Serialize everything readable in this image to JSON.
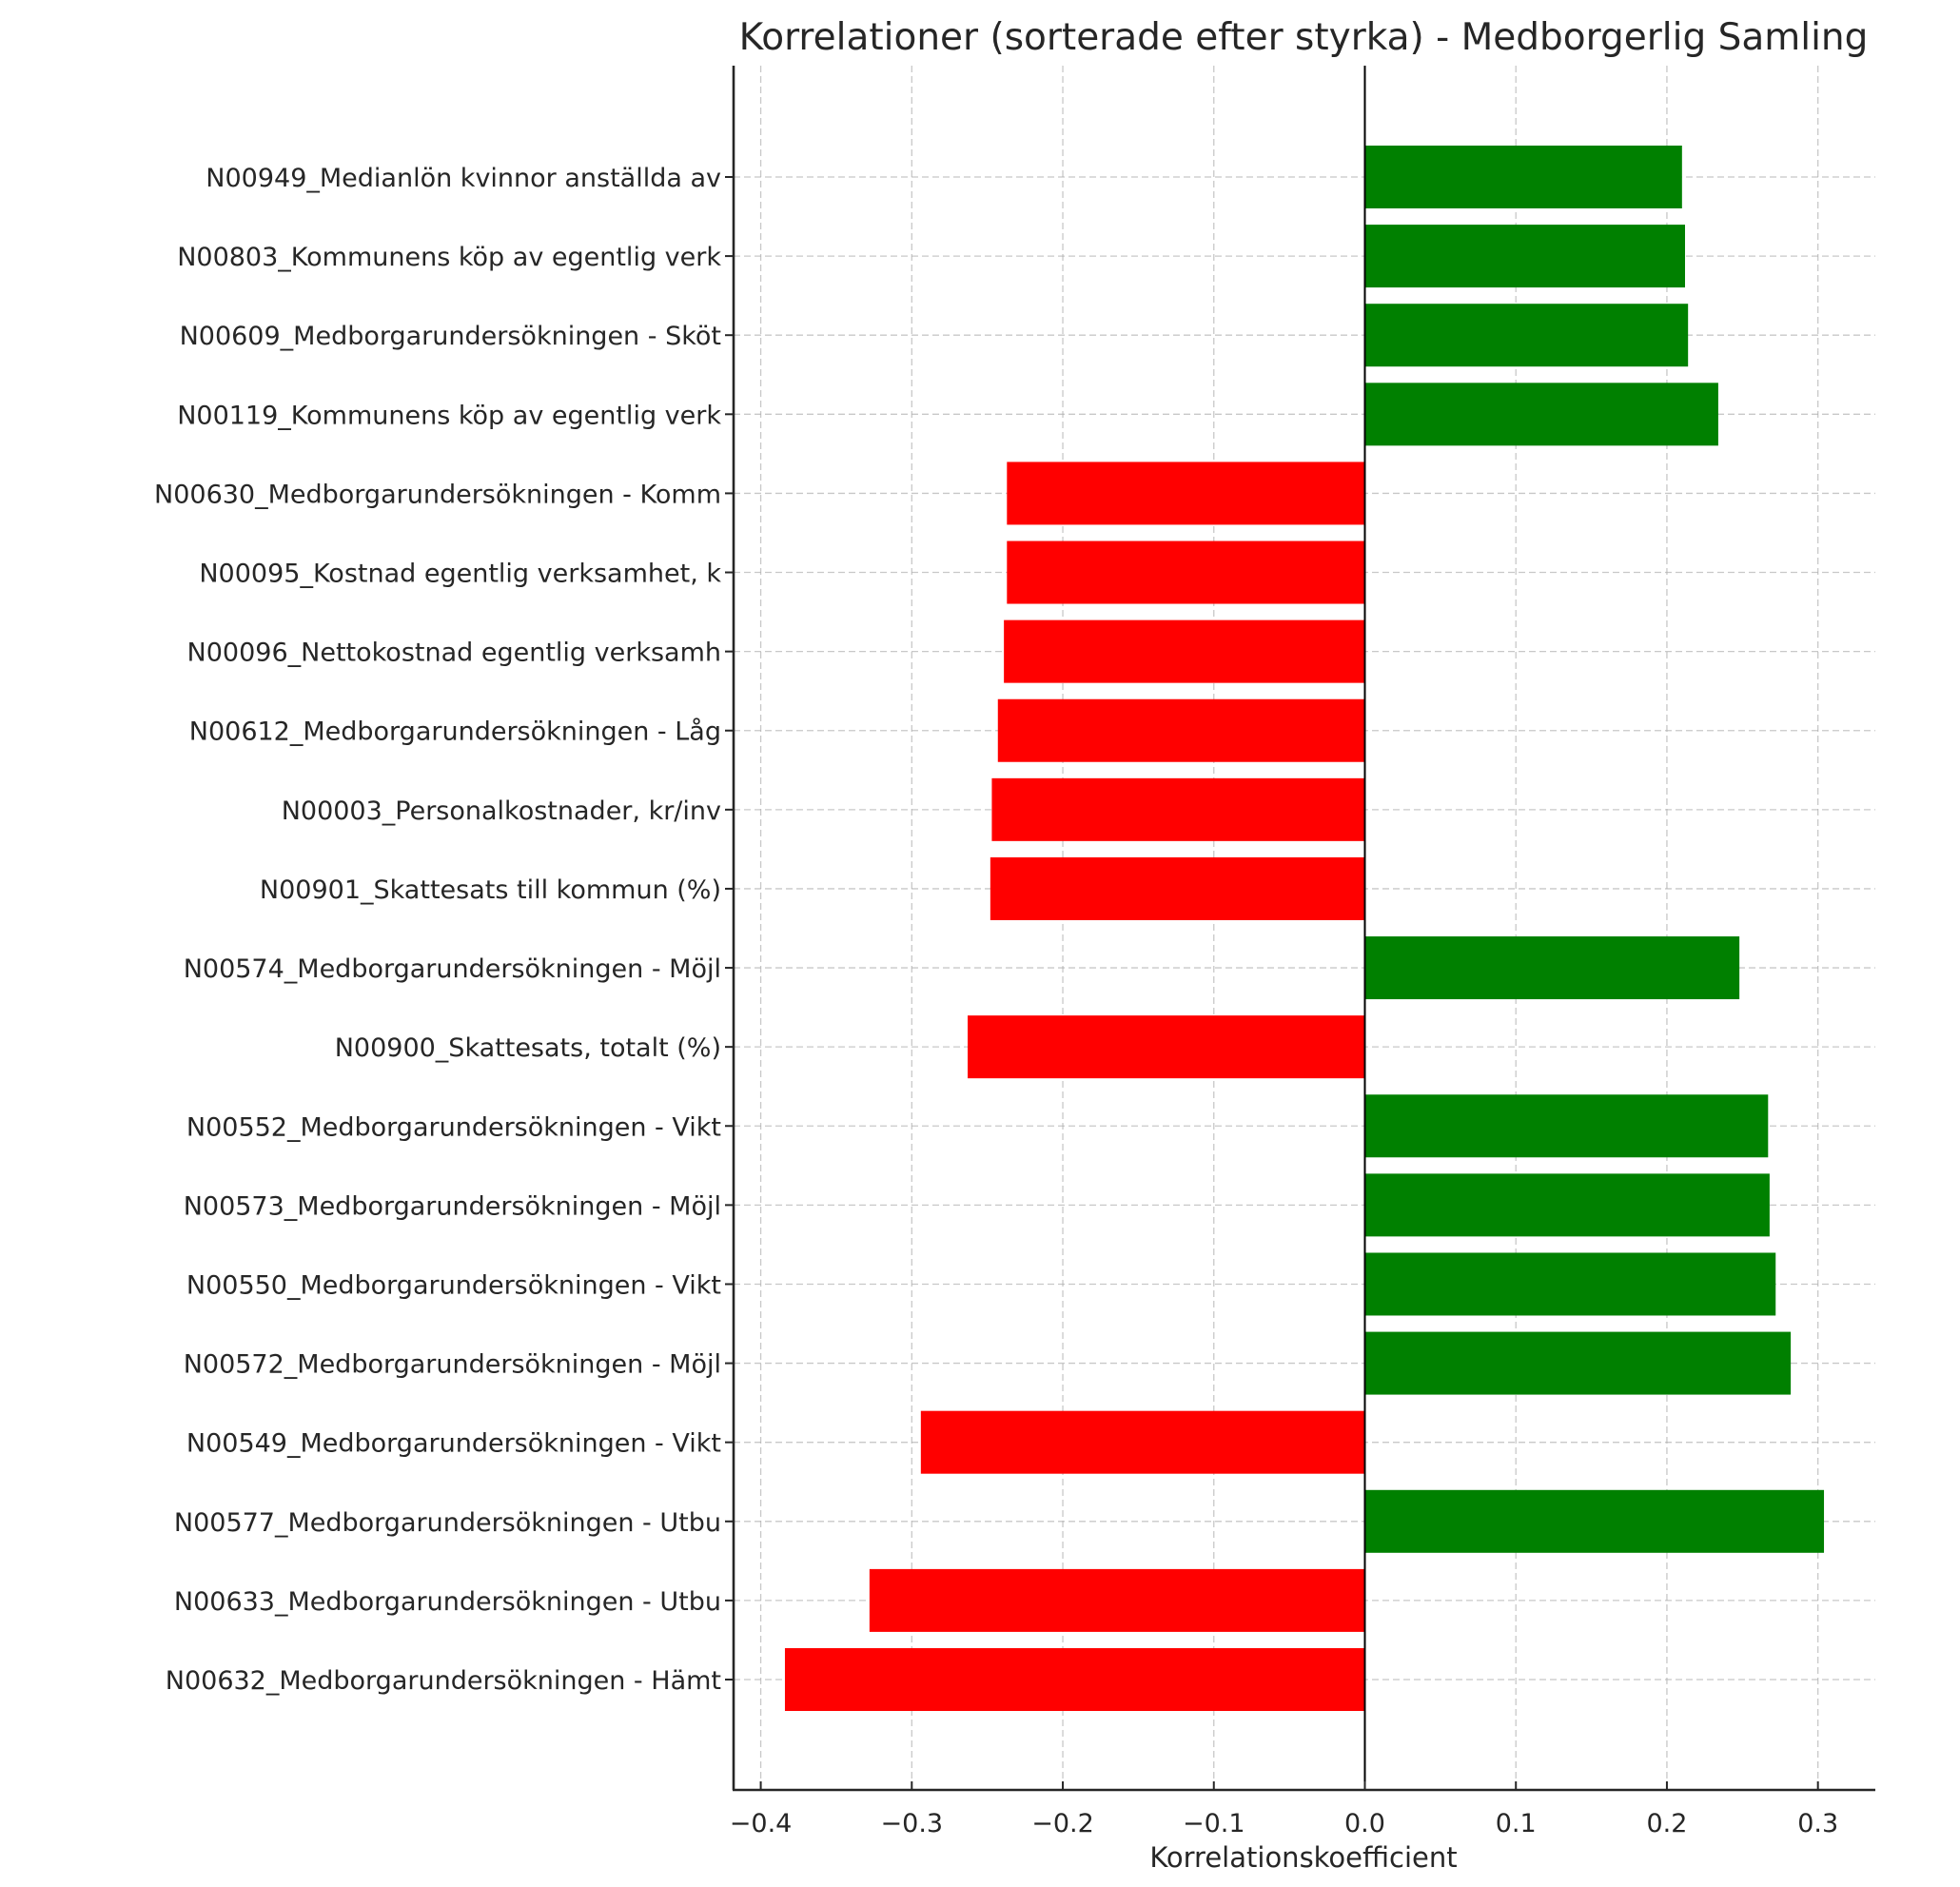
{
  "chart_data": {
    "type": "bar",
    "orientation": "horizontal",
    "title": "Korrelationer (sorterade efter styrka) - Medborgerlig Samling",
    "xlabel": "Korrelationskoefficient",
    "ylabel": "",
    "xlim": [
      -0.418,
      0.338
    ],
    "xticks": [
      -0.4,
      -0.3,
      -0.2,
      -0.1,
      0.0,
      0.1,
      0.2,
      0.3
    ],
    "xtick_labels": [
      "−0.4",
      "−0.3",
      "−0.2",
      "−0.1",
      "0.0",
      "0.1",
      "0.2",
      "0.3"
    ],
    "grid": true,
    "colors": {
      "positive": "#008000",
      "negative": "#ff0000"
    },
    "categories": [
      "N00949_Medianlön kvinnor anställda av",
      "N00803_Kommunens köp av egentlig verk",
      "N00609_Medborgarundersökningen - Sköt",
      "N00119_Kommunens köp av egentlig verk",
      "N00630_Medborgarundersökningen - Komm",
      "N00095_Kostnad egentlig verksamhet, k",
      "N00096_Nettokostnad egentlig verksamh",
      "N00612_Medborgarundersökningen - Låg ",
      "N00003_Personalkostnader, kr/inv",
      "N00901_Skattesats till kommun (%)",
      "N00574_Medborgarundersökningen - Möjl",
      "N00900_Skattesats, totalt (%)",
      "N00552_Medborgarundersökningen - Vikt",
      "N00573_Medborgarundersökningen - Möjl",
      "N00550_Medborgarundersökningen - Vikt",
      "N00572_Medborgarundersökningen - Möjl",
      "N00549_Medborgarundersökningen - Vikt",
      "N00577_Medborgarundersökningen - Utbu",
      "N00633_Medborgarundersökningen - Utbu",
      "N00632_Medborgarundersökningen - Hämt"
    ],
    "values": [
      0.21,
      0.212,
      0.214,
      0.234,
      -0.237,
      -0.237,
      -0.239,
      -0.243,
      -0.247,
      -0.248,
      0.248,
      -0.263,
      0.267,
      0.268,
      0.272,
      0.282,
      -0.294,
      0.304,
      -0.328,
      -0.384
    ]
  }
}
